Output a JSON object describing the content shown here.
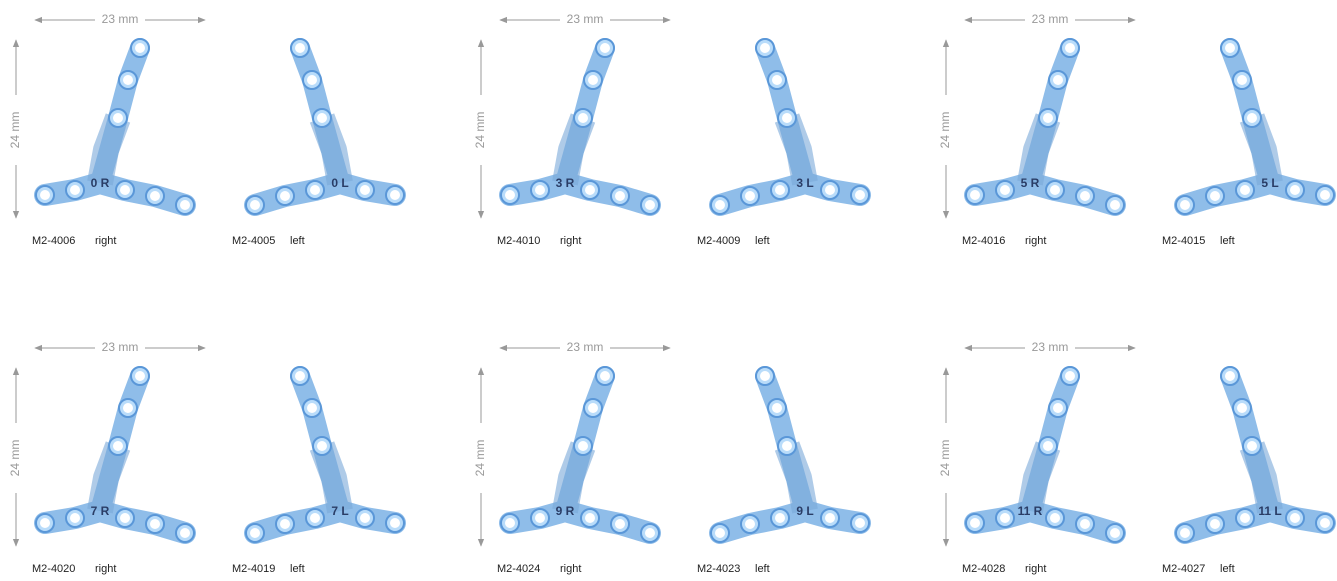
{
  "groups": [
    {
      "width_label": "23 mm",
      "height_label": "24 mm",
      "plates": [
        {
          "code": "M2-4006",
          "side": "right",
          "marking": "0 R"
        },
        {
          "code": "M2-4005",
          "side": "left",
          "marking": "0 L"
        }
      ]
    },
    {
      "width_label": "23 mm",
      "height_label": "24 mm",
      "plates": [
        {
          "code": "M2-4010",
          "side": "right",
          "marking": "3 R"
        },
        {
          "code": "M2-4009",
          "side": "left",
          "marking": "3 L"
        }
      ]
    },
    {
      "width_label": "23 mm",
      "height_label": "24 mm",
      "plates": [
        {
          "code": "M2-4016",
          "side": "right",
          "marking": "5 R"
        },
        {
          "code": "M2-4015",
          "side": "left",
          "marking": "5 L"
        }
      ]
    },
    {
      "width_label": "23 mm",
      "height_label": "24 mm",
      "plates": [
        {
          "code": "M2-4020",
          "side": "right",
          "marking": "7 R"
        },
        {
          "code": "M2-4019",
          "side": "left",
          "marking": "7 L"
        }
      ]
    },
    {
      "width_label": "23 mm",
      "height_label": "24 mm",
      "plates": [
        {
          "code": "M2-4024",
          "side": "right",
          "marking": "9 R"
        },
        {
          "code": "M2-4023",
          "side": "left",
          "marking": "9 L"
        }
      ]
    },
    {
      "width_label": "23 mm",
      "height_label": "24 mm",
      "plates": [
        {
          "code": "M2-4028",
          "side": "right",
          "marking": "11 R"
        },
        {
          "code": "M2-4027",
          "side": "left",
          "marking": "11 L"
        }
      ]
    }
  ]
}
